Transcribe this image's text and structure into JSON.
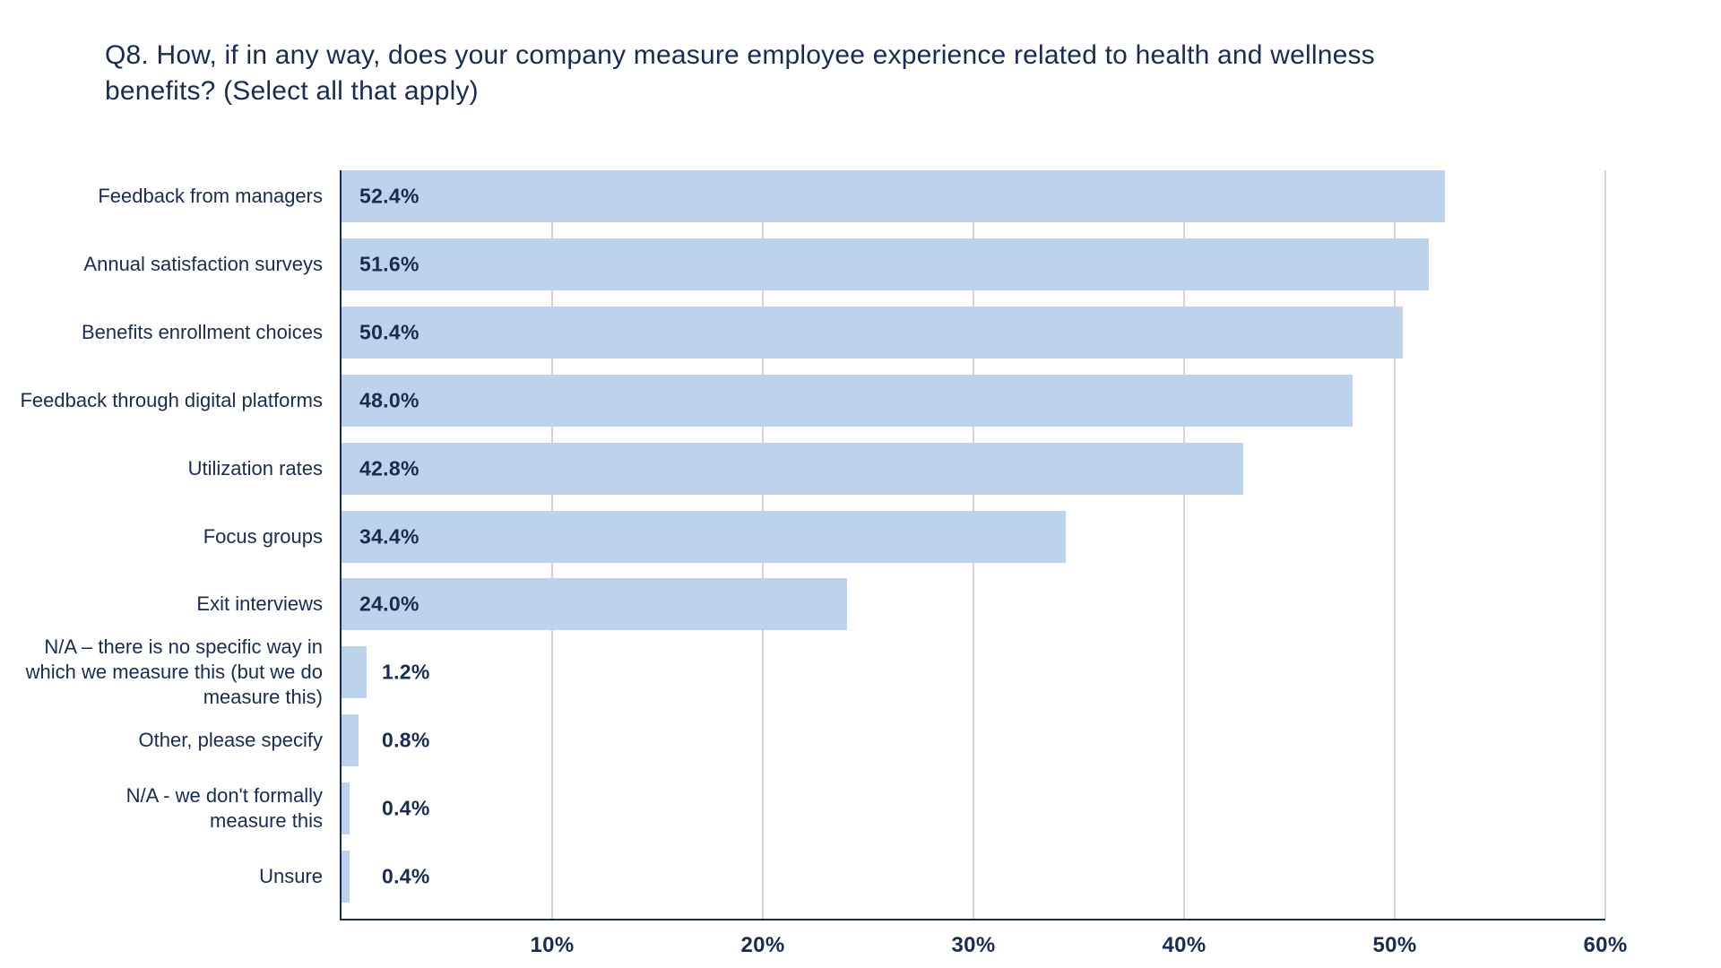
{
  "header": {
    "title_lines": [
      "Q8. How, if in any way, does your company measure employee experience related to health and wellness",
      "benefits? (Select all that apply)"
    ]
  },
  "chart_data": {
    "type": "bar",
    "orientation": "horizontal",
    "title": "Q8. How, if in any way, does your company measure employee experience related to health and wellness benefits? (Select all that apply)",
    "xlabel": "",
    "ylabel": "",
    "xlim": [
      0,
      60
    ],
    "grid": true,
    "legend": false,
    "colors": {
      "bar_fill": "#bdd3eb",
      "text_navy": "#192c4f",
      "gridline_gray": "#d4d4d4",
      "background": "#ffffff"
    },
    "x_ticks": [
      {
        "value": 10,
        "label": "10%"
      },
      {
        "value": 20,
        "label": "20%"
      },
      {
        "value": 30,
        "label": "30%"
      },
      {
        "value": 40,
        "label": "40%"
      },
      {
        "value": 50,
        "label": "50%"
      },
      {
        "value": 60,
        "label": "60%"
      }
    ],
    "rows": [
      {
        "category": "Feedback from managers",
        "category_lines": [
          "Feedback from managers"
        ],
        "value": 52.4,
        "value_label": "52.4%"
      },
      {
        "category": "Annual satisfaction surveys",
        "category_lines": [
          "Annual satisfaction surveys"
        ],
        "value": 51.6,
        "value_label": "51.6%"
      },
      {
        "category": "Benefits enrollment choices",
        "category_lines": [
          "Benefits enrollment choices"
        ],
        "value": 50.4,
        "value_label": "50.4%"
      },
      {
        "category": "Feedback through digital platforms",
        "category_lines": [
          "Feedback through digital platforms"
        ],
        "value": 48.0,
        "value_label": "48.0%"
      },
      {
        "category": "Utilization rates",
        "category_lines": [
          "Utilization rates"
        ],
        "value": 42.8,
        "value_label": "42.8%"
      },
      {
        "category": "Focus groups",
        "category_lines": [
          "Focus groups"
        ],
        "value": 34.4,
        "value_label": "34.4%"
      },
      {
        "category": "Exit interviews",
        "category_lines": [
          "Exit interviews"
        ],
        "value": 24.0,
        "value_label": "24.0%"
      },
      {
        "category": "N/A – there is no specific way in which we measure this (but we do measure this)",
        "category_lines": [
          "N/A – there is no specific way in",
          "which we measure this (but we do",
          "measure this)"
        ],
        "value": 1.2,
        "value_label": "1.2%"
      },
      {
        "category": "Other, please specify",
        "category_lines": [
          "Other, please specify"
        ],
        "value": 0.8,
        "value_label": "0.8%"
      },
      {
        "category": "N/A - we don't formally measure this",
        "category_lines": [
          "N/A - we don't formally",
          "measure this"
        ],
        "value": 0.4,
        "value_label": "0.4%"
      },
      {
        "category": "Unsure",
        "category_lines": [
          "Unsure"
        ],
        "value": 0.4,
        "value_label": "0.4%"
      }
    ]
  }
}
